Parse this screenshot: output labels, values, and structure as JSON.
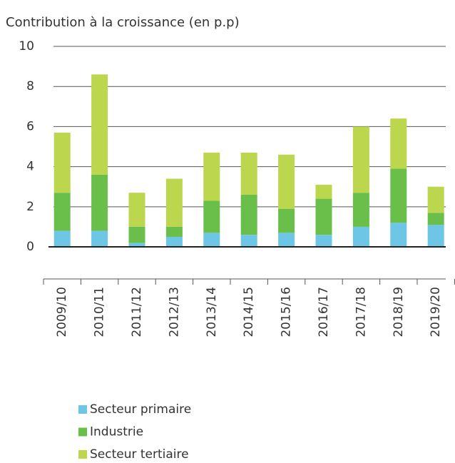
{
  "chart_data": {
    "type": "stacked_bar",
    "title": "Contribution à la croissance (en p.p)",
    "categories": [
      "2009/10",
      "2010/11",
      "2011/12",
      "2012/13",
      "2013/14",
      "2014/15",
      "2015/16",
      "2016/17",
      "2017/18",
      "2018/19",
      "2019/20"
    ],
    "series": [
      {
        "name": "Secteur primaire",
        "color": "#6ec6e6",
        "values": [
          0.8,
          0.8,
          0.2,
          0.5,
          0.7,
          0.6,
          0.7,
          0.6,
          1.0,
          1.2,
          1.1
        ]
      },
      {
        "name": "Industrie",
        "color": "#6abf4b",
        "values": [
          1.9,
          2.8,
          0.8,
          0.5,
          1.6,
          2.0,
          1.2,
          1.8,
          1.7,
          2.7,
          0.6
        ]
      },
      {
        "name": "Secteur tertiaire",
        "color": "#bcd64e",
        "values": [
          3.0,
          5.0,
          1.7,
          2.4,
          2.4,
          2.1,
          2.7,
          0.7,
          3.3,
          2.5,
          1.3
        ]
      }
    ],
    "ylim": [
      -1.6,
      10
    ],
    "yticks": [
      0,
      2,
      4,
      6,
      8,
      10
    ],
    "grid": true,
    "legend": "bottom"
  }
}
